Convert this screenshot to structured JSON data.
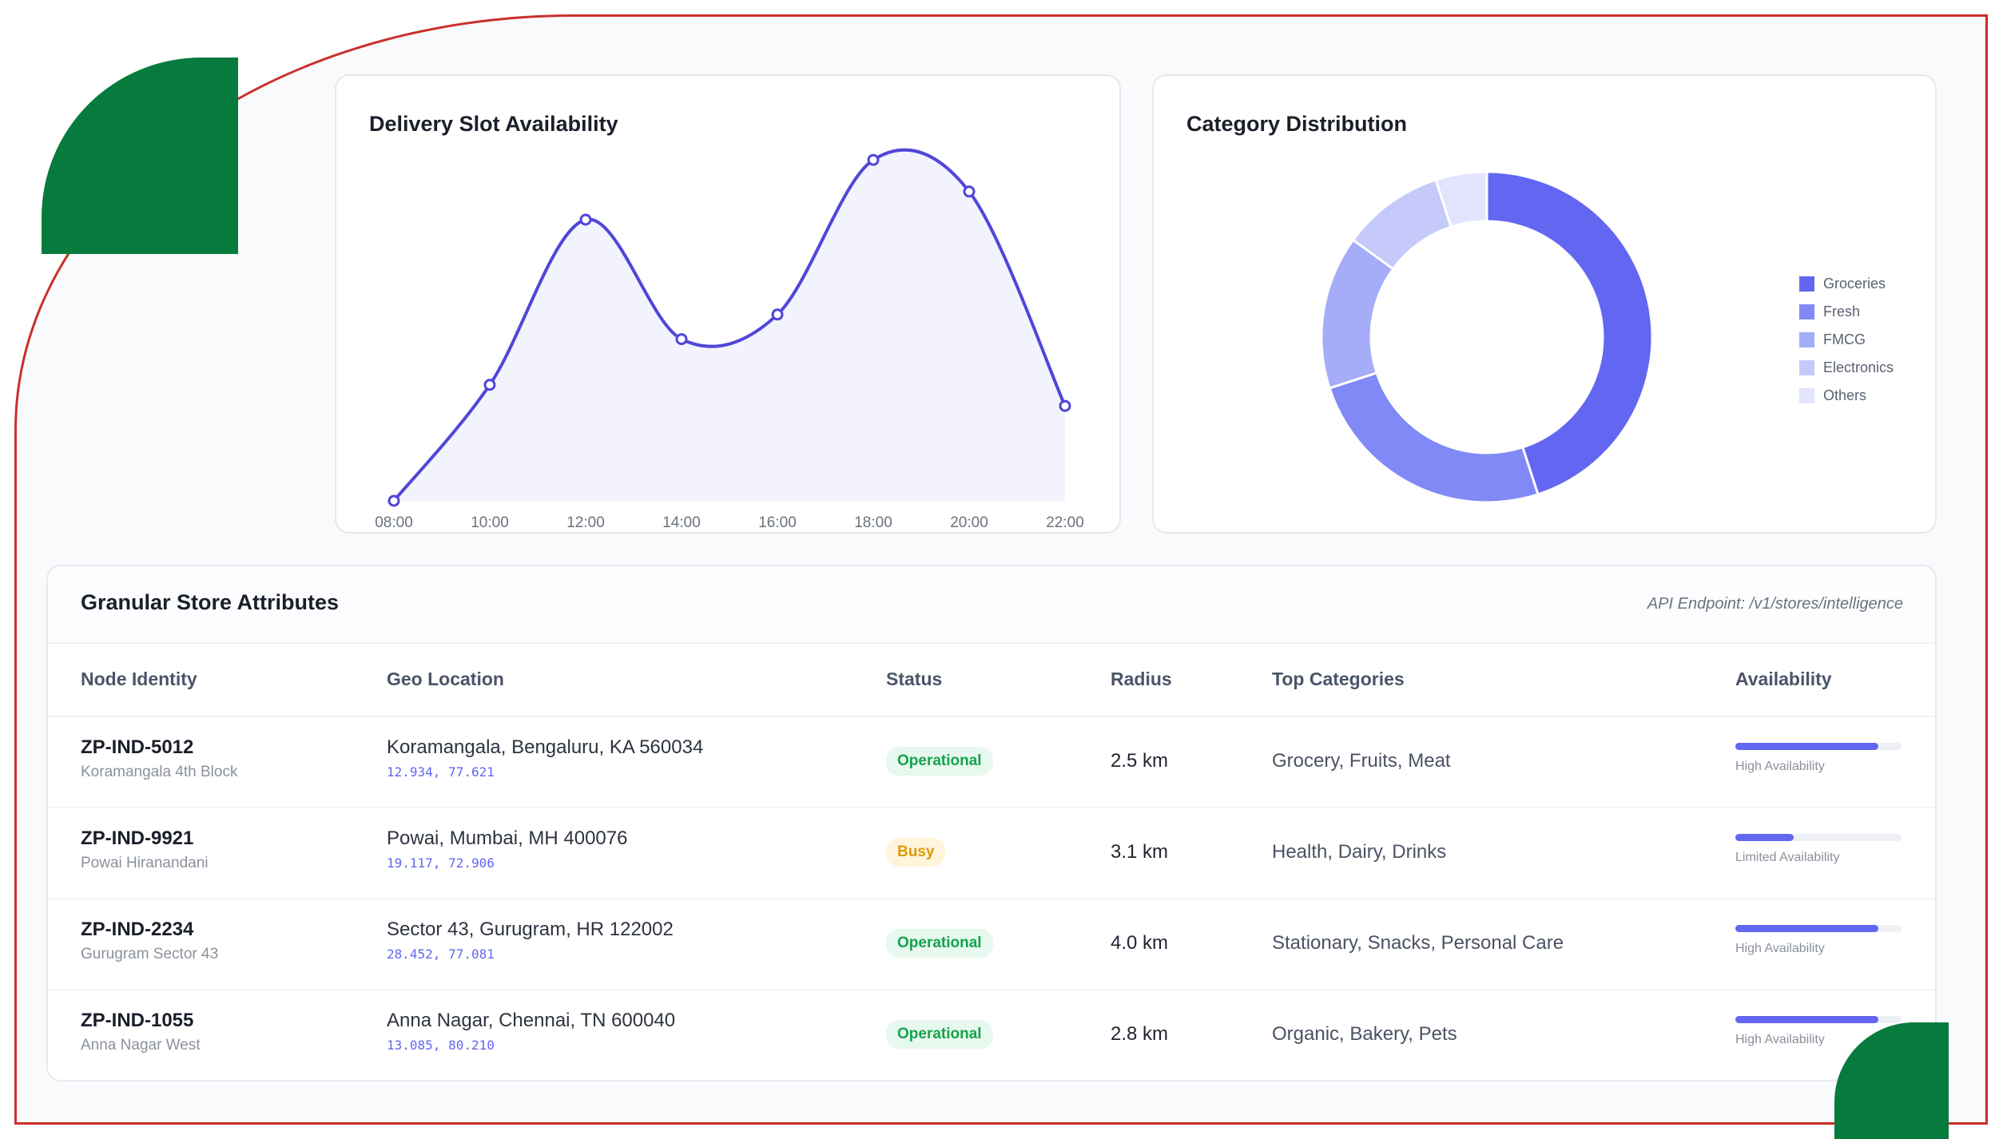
{
  "colors": {
    "accent": "#6366f1",
    "brand_green": "#077a3e",
    "border_red": "#c9302c"
  },
  "slot_chart": {
    "title": "Delivery Slot Availability",
    "chart_data": {
      "type": "area",
      "title": "Delivery Slot Availability",
      "categories": [
        "08:00",
        "10:00",
        "12:00",
        "14:00",
        "16:00",
        "18:00",
        "20:00",
        "22:00"
      ],
      "values": [
        0,
        33,
        80,
        46,
        53,
        97,
        88,
        27
      ],
      "ylim": [
        0,
        100
      ],
      "grid": false
    }
  },
  "category_chart": {
    "title": "Category Distribution",
    "chart_data": {
      "type": "pie",
      "title": "Category Distribution",
      "labels": [
        "Groceries",
        "Fresh",
        "FMCG",
        "Electronics",
        "Others"
      ],
      "values": [
        45,
        25,
        15,
        10,
        5
      ],
      "colors": [
        "#6366f1",
        "#8089f5",
        "#a5acf8",
        "#c5cafb",
        "#e2e5fd"
      ],
      "legend_position": "right"
    }
  },
  "table": {
    "title": "Granular Store Attributes",
    "api_endpoint": "API Endpoint: /v1/stores/intelligence",
    "headers": {
      "node": "Node Identity",
      "geo": "Geo Location",
      "status": "Status",
      "radius": "Radius",
      "categories": "Top Categories",
      "availability": "Availability"
    },
    "rows": [
      {
        "id": "ZP-IND-5012",
        "sub": "Koramangala 4th Block",
        "address": "Koramangala, Bengaluru, KA 560034",
        "coords": "12.934, 77.621",
        "status": "Operational",
        "radius": "2.5 km",
        "categories": "Grocery, Fruits, Meat",
        "availability_pct": 86,
        "availability_label": "High Availability"
      },
      {
        "id": "ZP-IND-9921",
        "sub": "Powai Hiranandani",
        "address": "Powai, Mumbai, MH 400076",
        "coords": "19.117, 72.906",
        "status": "Busy",
        "radius": "3.1 km",
        "categories": "Health, Dairy, Drinks",
        "availability_pct": 35,
        "availability_label": "Limited Availability"
      },
      {
        "id": "ZP-IND-2234",
        "sub": "Gurugram Sector 43",
        "address": "Sector 43, Gurugram, HR 122002",
        "coords": "28.452, 77.081",
        "status": "Operational",
        "radius": "4.0 km",
        "categories": "Stationary, Snacks, Personal Care",
        "availability_pct": 86,
        "availability_label": "High Availability"
      },
      {
        "id": "ZP-IND-1055",
        "sub": "Anna Nagar West",
        "address": "Anna Nagar, Chennai, TN 600040",
        "coords": "13.085, 80.210",
        "status": "Operational",
        "radius": "2.8 km",
        "categories": "Organic, Bakery, Pets",
        "availability_pct": 86,
        "availability_label": "High Availability"
      }
    ]
  }
}
